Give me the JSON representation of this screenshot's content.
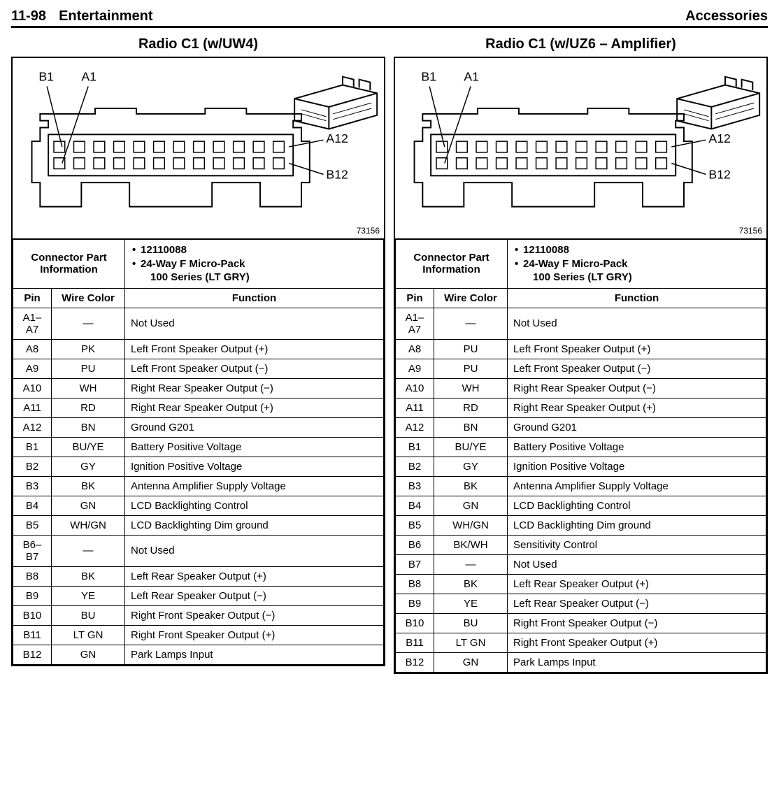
{
  "page": {
    "section_number": "11-98",
    "section_title": "Entertainment",
    "right_header": "Accessories"
  },
  "diagram_stamp": "73156",
  "columns": {
    "pin": "Pin",
    "wire": "Wire Color",
    "fn": "Function"
  },
  "cpi_label": "Connector Part Information",
  "cpi": {
    "part_number": "12110088",
    "desc_line1": "24-Way F Micro-Pack",
    "desc_line2": "100 Series (LT GRY)"
  },
  "panels": [
    {
      "title": "Radio C1 (w/UW4)",
      "rows": [
        {
          "pin": "A1–A7",
          "wire": "—",
          "fn": "Not Used"
        },
        {
          "pin": "A8",
          "wire": "PK",
          "fn": "Left Front Speaker Output (+)"
        },
        {
          "pin": "A9",
          "wire": "PU",
          "fn": "Left Front Speaker Output (−)"
        },
        {
          "pin": "A10",
          "wire": "WH",
          "fn": "Right Rear Speaker Output (−)"
        },
        {
          "pin": "A11",
          "wire": "RD",
          "fn": "Right Rear Speaker Output (+)"
        },
        {
          "pin": "A12",
          "wire": "BN",
          "fn": "Ground G201"
        },
        {
          "pin": "B1",
          "wire": "BU/YE",
          "fn": "Battery Positive Voltage"
        },
        {
          "pin": "B2",
          "wire": "GY",
          "fn": "Ignition Positive Voltage"
        },
        {
          "pin": "B3",
          "wire": "BK",
          "fn": "Antenna Amplifier Supply Voltage"
        },
        {
          "pin": "B4",
          "wire": "GN",
          "fn": "LCD Backlighting Control"
        },
        {
          "pin": "B5",
          "wire": "WH/GN",
          "fn": "LCD Backlighting Dim ground"
        },
        {
          "pin": "B6–B7",
          "wire": "—",
          "fn": "Not Used"
        },
        {
          "pin": "B8",
          "wire": "BK",
          "fn": "Left Rear Speaker Output (+)"
        },
        {
          "pin": "B9",
          "wire": "YE",
          "fn": "Left Rear Speaker Output (−)"
        },
        {
          "pin": "B10",
          "wire": "BU",
          "fn": "Right Front Speaker Output (−)"
        },
        {
          "pin": "B11",
          "wire": "LT GN",
          "fn": "Right Front Speaker Output (+)"
        },
        {
          "pin": "B12",
          "wire": "GN",
          "fn": "Park Lamps Input"
        }
      ]
    },
    {
      "title": "Radio C1 (w/UZ6 – Amplifier)",
      "rows": [
        {
          "pin": "A1–A7",
          "wire": "—",
          "fn": "Not Used"
        },
        {
          "pin": "A8",
          "wire": "PU",
          "fn": "Left Front Speaker Output (+)"
        },
        {
          "pin": "A9",
          "wire": "PU",
          "fn": "Left Front Speaker Output (−)"
        },
        {
          "pin": "A10",
          "wire": "WH",
          "fn": "Right Rear Speaker Output (−)"
        },
        {
          "pin": "A11",
          "wire": "RD",
          "fn": "Right Rear Speaker Output (+)"
        },
        {
          "pin": "A12",
          "wire": "BN",
          "fn": "Ground G201"
        },
        {
          "pin": "B1",
          "wire": "BU/YE",
          "fn": "Battery Positive Voltage"
        },
        {
          "pin": "B2",
          "wire": "GY",
          "fn": "Ignition Positive Voltage"
        },
        {
          "pin": "B3",
          "wire": "BK",
          "fn": "Antenna Amplifier Supply Voltage"
        },
        {
          "pin": "B4",
          "wire": "GN",
          "fn": "LCD Backlighting Control"
        },
        {
          "pin": "B5",
          "wire": "WH/GN",
          "fn": "LCD Backlighting Dim ground"
        },
        {
          "pin": "B6",
          "wire": "BK/WH",
          "fn": "Sensitivity Control"
        },
        {
          "pin": "B7",
          "wire": "—",
          "fn": "Not Used"
        },
        {
          "pin": "B8",
          "wire": "BK",
          "fn": "Left Rear Speaker Output (+)"
        },
        {
          "pin": "B9",
          "wire": "YE",
          "fn": "Left Rear Speaker Output (−)"
        },
        {
          "pin": "B10",
          "wire": "BU",
          "fn": "Right Front Speaker Output (−)"
        },
        {
          "pin": "B11",
          "wire": "LT GN",
          "fn": "Right Front Speaker Output (+)"
        },
        {
          "pin": "B12",
          "wire": "GN",
          "fn": "Park Lamps Input"
        }
      ]
    }
  ],
  "pin_labels": {
    "b1": "B1",
    "a1": "A1",
    "a12": "A12",
    "b12": "B12"
  }
}
